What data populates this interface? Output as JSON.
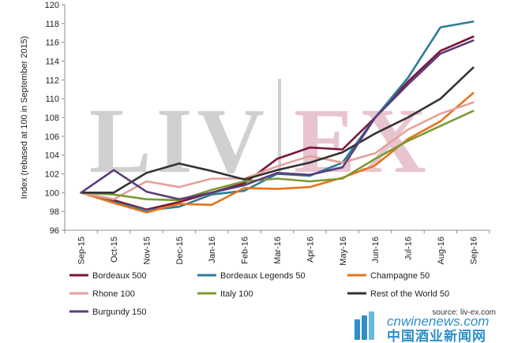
{
  "chart_data": {
    "type": "line",
    "title": "",
    "xlabel": "",
    "ylabel": "Index (rebased at 100 in September 2015)",
    "ylim": [
      96,
      120
    ],
    "yticks": [
      96,
      98,
      100,
      102,
      104,
      106,
      108,
      110,
      112,
      114,
      116,
      118,
      120
    ],
    "categories": [
      "Sep-15",
      "Oct-15",
      "Nov-15",
      "Dec-15",
      "Jan-16",
      "Feb-16",
      "Mar-16",
      "Apr-16",
      "May-16",
      "Jun-16",
      "Jul-16",
      "Aug-16",
      "Sep-16"
    ],
    "grid": false,
    "legend_position": "bottom",
    "series": [
      {
        "name": "Bordeaux 500",
        "color": "#7b1537",
        "values": [
          100,
          99.2,
          98.2,
          99.0,
          100.0,
          101.0,
          103.6,
          104.8,
          104.6,
          108.0,
          111.8,
          115.1,
          116.6
        ]
      },
      {
        "name": "Bordeaux Legends 50",
        "color": "#2a7c9a",
        "values": [
          100,
          99.0,
          98.1,
          98.5,
          99.8,
          100.2,
          102.0,
          101.8,
          103.2,
          108.0,
          112.2,
          117.6,
          118.2
        ]
      },
      {
        "name": "Champagne 50",
        "color": "#e6731c",
        "values": [
          100,
          98.9,
          97.9,
          98.8,
          98.7,
          100.5,
          100.4,
          100.6,
          101.6,
          102.9,
          105.7,
          107.6,
          110.6
        ]
      },
      {
        "name": "Rhone 100",
        "color": "#e3a19d",
        "values": [
          100,
          99.3,
          101.2,
          100.6,
          101.5,
          101.5,
          102.8,
          103.9,
          103.2,
          104.2,
          106.7,
          108.4,
          109.6
        ]
      },
      {
        "name": "Italy 100",
        "color": "#7a9a34",
        "values": [
          100,
          99.8,
          99.3,
          99.2,
          100.3,
          101.2,
          101.5,
          101.2,
          101.5,
          103.6,
          105.5,
          107.1,
          108.7
        ]
      },
      {
        "name": "Rest of the World 50",
        "color": "#333333",
        "values": [
          100,
          100.0,
          102.1,
          103.1,
          102.3,
          101.4,
          102.4,
          103.2,
          104.3,
          106.3,
          108.0,
          110.0,
          113.3
        ]
      },
      {
        "name": "Burgundy 150",
        "color": "#5b3d7a",
        "values": [
          100,
          102.4,
          100.1,
          99.3,
          100.0,
          100.8,
          102.1,
          101.9,
          102.7,
          108.0,
          111.5,
          114.8,
          116.2
        ]
      }
    ]
  },
  "watermark": {
    "liv": "LIV",
    "ex": "EX",
    "liv_color": "#d0d0d0",
    "ex_color": "#e8c4cf"
  },
  "source": "source: liv-ex.com",
  "footer": {
    "site": "cnwinenews.com",
    "site_cn": "中国酒业新闻网",
    "color": "#2f8fc9"
  }
}
